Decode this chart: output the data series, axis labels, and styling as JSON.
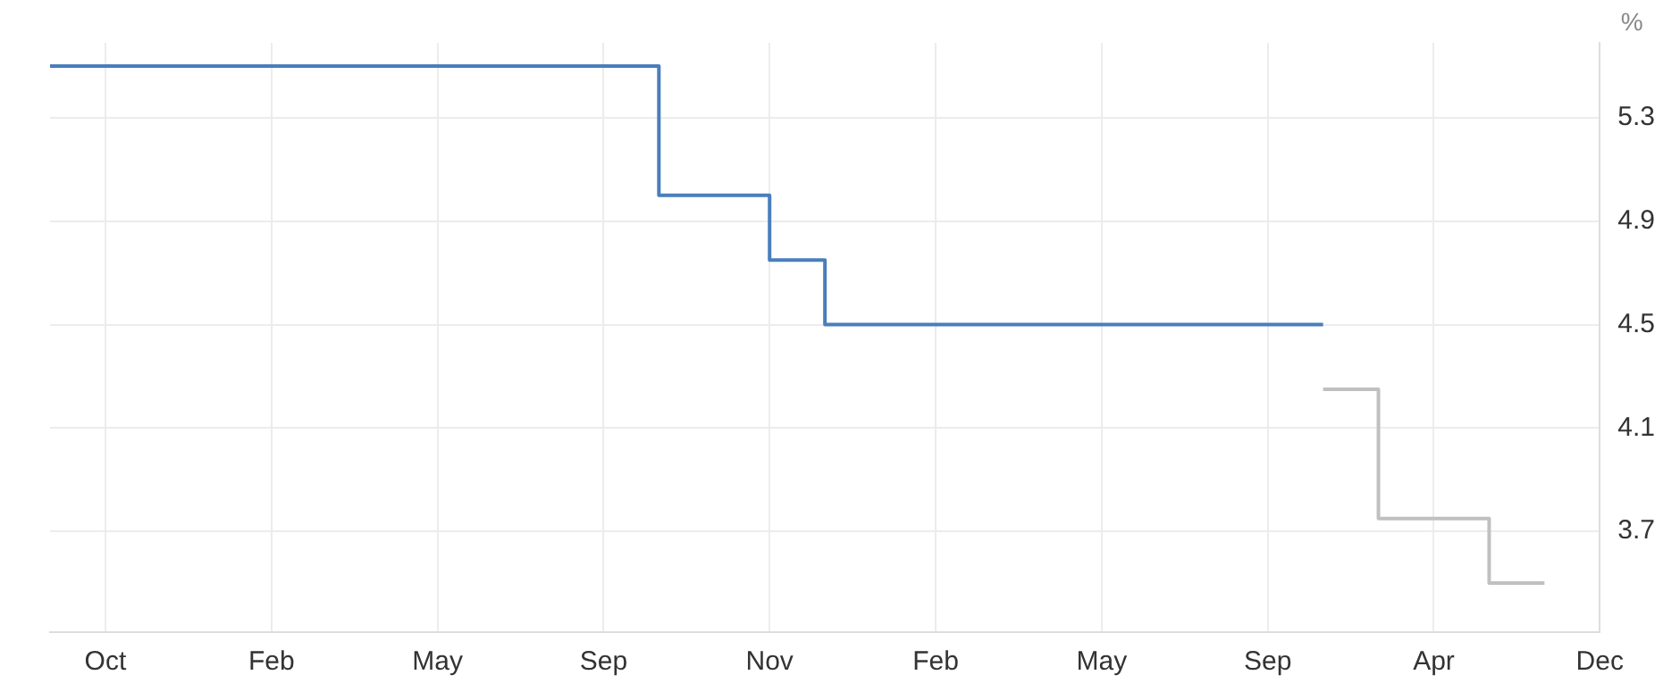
{
  "chart_data": {
    "type": "step",
    "ylabel": "%",
    "categories": [
      null,
      "Oct",
      null,
      null,
      "Feb",
      null,
      null,
      "May",
      null,
      null,
      "Sep",
      null,
      null,
      "Nov",
      null,
      null,
      "Feb",
      null,
      null,
      "May",
      null,
      null,
      "Sep",
      null,
      null,
      "Apr",
      null,
      null,
      "Dec"
    ],
    "series": [
      {
        "color": "#4a7ebb",
        "values": [
          5.5,
          5.5,
          5.5,
          5.5,
          5.5,
          5.5,
          5.5,
          5.5,
          5.5,
          5.5,
          5.5,
          5.0,
          5.0,
          4.75,
          4.5,
          4.5,
          4.5,
          4.5,
          4.5,
          4.5,
          4.5,
          4.5,
          4.5,
          4.5,
          null,
          null,
          null,
          null,
          null
        ]
      },
      {
        "color": "#c0c0c0",
        "values": [
          null,
          null,
          null,
          null,
          null,
          null,
          null,
          null,
          null,
          null,
          null,
          null,
          null,
          null,
          null,
          null,
          null,
          null,
          null,
          null,
          null,
          null,
          null,
          4.25,
          3.75,
          3.75,
          3.5,
          3.5,
          null
        ]
      }
    ],
    "ylim": [
      3.31,
      5.59
    ],
    "yticks": [
      3.7,
      4.1,
      4.5,
      4.9,
      5.3
    ],
    "grid": true,
    "legend": false
  }
}
